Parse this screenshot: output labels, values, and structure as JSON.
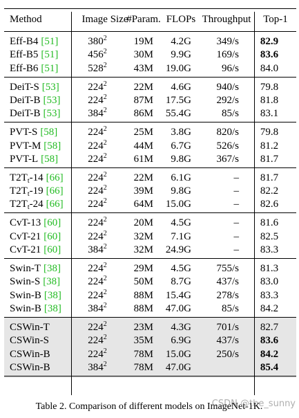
{
  "header": {
    "columns": [
      "Method",
      "Image Size",
      "#Param.",
      "FLOPs",
      "Throughput",
      "Top-1"
    ]
  },
  "groups": [
    {
      "rows": [
        {
          "method": "Eff-B4",
          "cite": "[51]",
          "image_size": "380",
          "image_size_exp": "2",
          "params": "19M",
          "flops": "4.2G",
          "throughput": "349/s",
          "top1": "82.9",
          "top1_bold": true
        },
        {
          "method": "Eff-B5",
          "cite": "[51]",
          "image_size": "456",
          "image_size_exp": "2",
          "params": "30M",
          "flops": "9.9G",
          "throughput": "169/s",
          "top1": "83.6",
          "top1_bold": true
        },
        {
          "method": "Eff-B6",
          "cite": "[51]",
          "image_size": "528",
          "image_size_exp": "2",
          "params": "43M",
          "flops": "19.0G",
          "throughput": "96/s",
          "top1": "84.0"
        }
      ]
    },
    {
      "rows": [
        {
          "method": "DeiT-S",
          "cite": "[53]",
          "image_size": "224",
          "image_size_exp": "2",
          "params": "22M",
          "flops": "4.6G",
          "throughput": "940/s",
          "top1": "79.8"
        },
        {
          "method": "DeiT-B",
          "cite": "[53]",
          "image_size": "224",
          "image_size_exp": "2",
          "params": "87M",
          "flops": "17.5G",
          "throughput": "292/s",
          "top1": "81.8"
        },
        {
          "method": "DeiT-B",
          "cite": "[53]",
          "image_size": "384",
          "image_size_exp": "2",
          "params": "86M",
          "flops": "55.4G",
          "throughput": "85/s",
          "top1": "83.1"
        }
      ]
    },
    {
      "rows": [
        {
          "method": "PVT-S",
          "cite": "[58]",
          "image_size": "224",
          "image_size_exp": "2",
          "params": "25M",
          "flops": "3.8G",
          "throughput": "820/s",
          "top1": "79.8"
        },
        {
          "method": "PVT-M",
          "cite": "[58]",
          "image_size": "224",
          "image_size_exp": "2",
          "params": "44M",
          "flops": "6.7G",
          "throughput": "526/s",
          "top1": "81.2"
        },
        {
          "method": "PVT-L",
          "cite": "[58]",
          "image_size": "224",
          "image_size_exp": "2",
          "params": "61M",
          "flops": "9.8G",
          "throughput": "367/s",
          "top1": "81.7"
        }
      ]
    },
    {
      "rows": [
        {
          "method": "T2T",
          "method_sub": "t",
          "method_tail": "-14",
          "cite": "[66]",
          "image_size": "224",
          "image_size_exp": "2",
          "params": "22M",
          "flops": "6.1G",
          "throughput": "–",
          "top1": "81.7"
        },
        {
          "method": "T2T",
          "method_sub": "t",
          "method_tail": "-19",
          "cite": "[66]",
          "image_size": "224",
          "image_size_exp": "2",
          "params": "39M",
          "flops": "9.8G",
          "throughput": "–",
          "top1": "82.2"
        },
        {
          "method": "T2T",
          "method_sub": "t",
          "method_tail": "-24",
          "cite": "[66]",
          "image_size": "224",
          "image_size_exp": "2",
          "params": "64M",
          "flops": "15.0G",
          "throughput": "–",
          "top1": "82.6"
        }
      ]
    },
    {
      "rows": [
        {
          "method": "CvT-13",
          "cite": "[60]",
          "image_size": "224",
          "image_size_exp": "2",
          "params": "20M",
          "flops": "4.5G",
          "throughput": "–",
          "top1": "81.6"
        },
        {
          "method": "CvT-21",
          "cite": "[60]",
          "image_size": "224",
          "image_size_exp": "2",
          "params": "32M",
          "flops": "7.1G",
          "throughput": "–",
          "top1": "82.5"
        },
        {
          "method": "CvT-21",
          "cite": "[60]",
          "image_size": "384",
          "image_size_exp": "2",
          "params": "32M",
          "flops": "24.9G",
          "throughput": "–",
          "top1": "83.3"
        }
      ]
    },
    {
      "rows": [
        {
          "method": "Swin-T",
          "cite": "[38]",
          "image_size": "224",
          "image_size_exp": "2",
          "params": "29M",
          "flops": "4.5G",
          "throughput": "755/s",
          "top1": "81.3"
        },
        {
          "method": "Swin-S",
          "cite": "[38]",
          "image_size": "224",
          "image_size_exp": "2",
          "params": "50M",
          "flops": "8.7G",
          "throughput": "437/s",
          "top1": "83.0"
        },
        {
          "method": "Swin-B",
          "cite": "[38]",
          "image_size": "224",
          "image_size_exp": "2",
          "params": "88M",
          "flops": "15.4G",
          "throughput": "278/s",
          "top1": "83.3"
        },
        {
          "method": "Swin-B",
          "cite": "[38]",
          "image_size": "384",
          "image_size_exp": "2",
          "params": "88M",
          "flops": "47.0G",
          "throughput": "85/s",
          "top1": "84.2"
        }
      ]
    },
    {
      "highlight": true,
      "rows": [
        {
          "method": "CSWin-T",
          "image_size": "224",
          "image_size_exp": "2",
          "params": "23M",
          "flops": "4.3G",
          "throughput": "701/s",
          "top1": "82.7"
        },
        {
          "method": "CSWin-S",
          "image_size": "224",
          "image_size_exp": "2",
          "params": "35M",
          "flops": "6.9G",
          "throughput": "437/s",
          "top1": "83.6",
          "top1_bold": true
        },
        {
          "method": "CSWin-B",
          "image_size": "224",
          "image_size_exp": "2",
          "params": "78M",
          "flops": "15.0G",
          "throughput": "250/s",
          "top1": "84.2",
          "top1_bold": true
        },
        {
          "method": "CSWin-B",
          "image_size": "384",
          "image_size_exp": "2",
          "params": "78M",
          "flops": "47.0G",
          "top1": "85.4",
          "top1_bold": true
        }
      ]
    }
  ],
  "caption": "Table 2. Comparison of different models on ImageNet-1K.",
  "watermark": "CSDN @the_sunny"
}
